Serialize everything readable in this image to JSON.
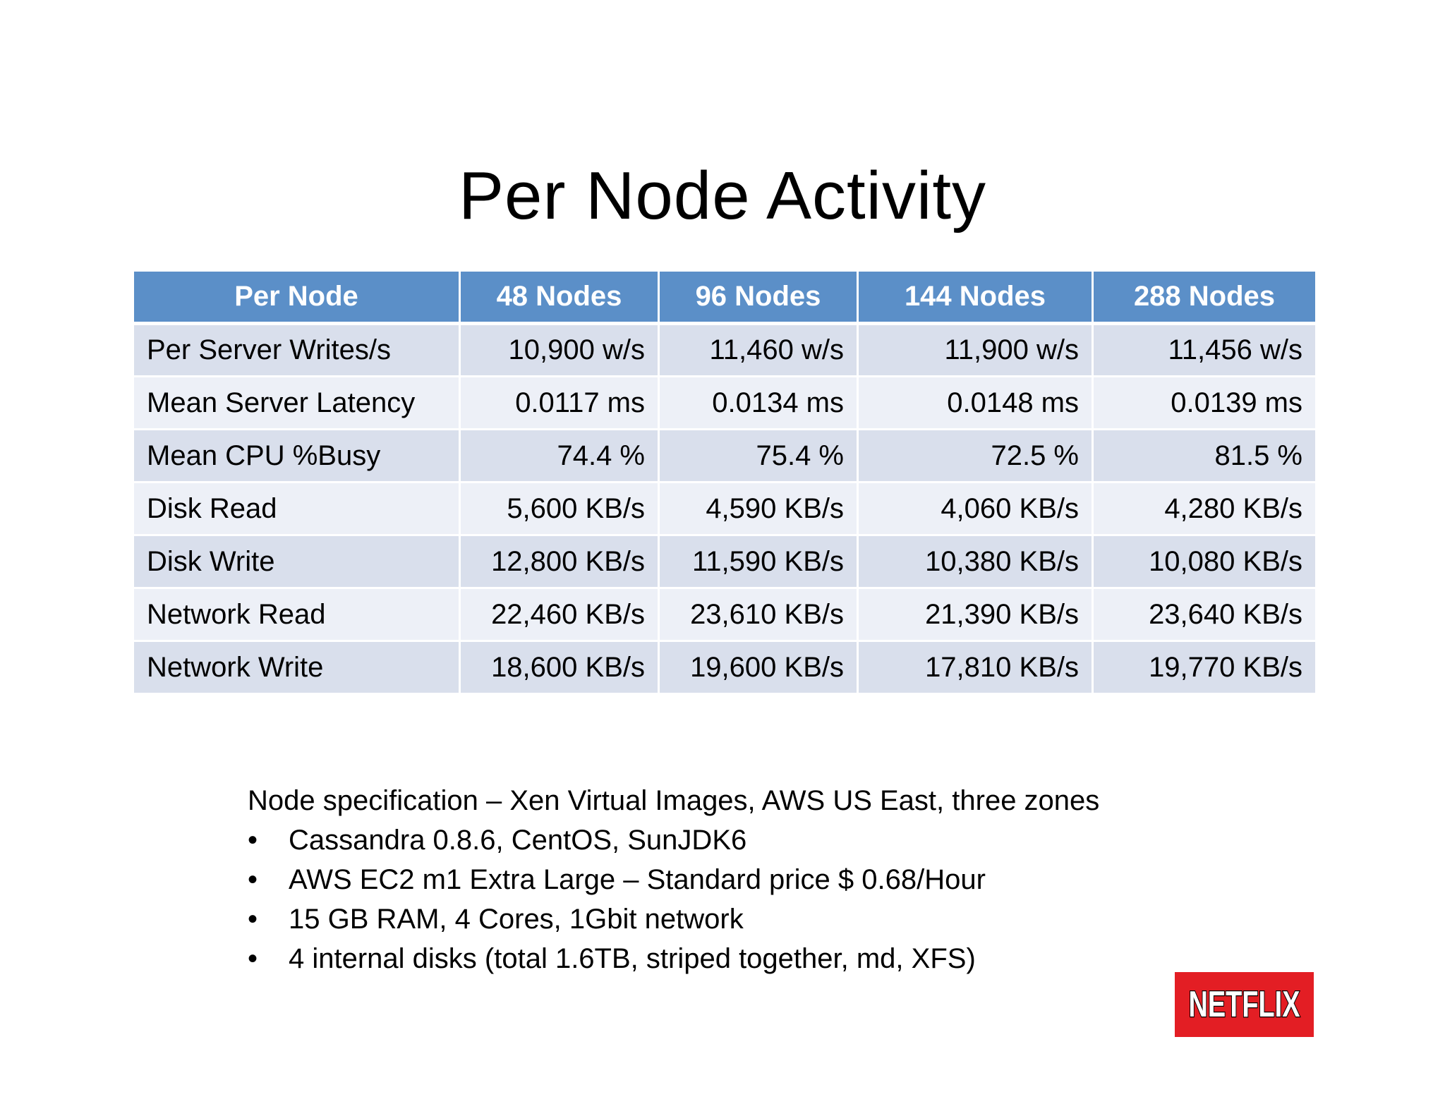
{
  "title": "Per Node Activity",
  "table": {
    "headers": [
      "Per Node",
      "48 Nodes",
      "96 Nodes",
      "144 Nodes",
      "288 Nodes"
    ],
    "rows": [
      {
        "label": "Per Server Writes/s",
        "values": [
          "10,900 w/s",
          "11,460 w/s",
          "11,900 w/s",
          "11,456 w/s"
        ]
      },
      {
        "label": "Mean Server Latency",
        "values": [
          "0.0117 ms",
          "0.0134 ms",
          "0.0148 ms",
          "0.0139 ms"
        ]
      },
      {
        "label": "Mean CPU %Busy",
        "values": [
          "74.4 %",
          "75.4 %",
          "72.5 %",
          "81.5 %"
        ]
      },
      {
        "label": "Disk Read",
        "values": [
          "5,600 KB/s",
          "4,590 KB/s",
          "4,060 KB/s",
          "4,280 KB/s"
        ]
      },
      {
        "label": "Disk Write",
        "values": [
          "12,800 KB/s",
          "11,590 KB/s",
          "10,380 KB/s",
          "10,080 KB/s"
        ]
      },
      {
        "label": "Network Read",
        "values": [
          "22,460 KB/s",
          "23,610 KB/s",
          "21,390 KB/s",
          "23,640 KB/s"
        ]
      },
      {
        "label": "Network Write",
        "values": [
          "18,600 KB/s",
          "19,600 KB/s",
          "17,810 KB/s",
          "19,770 KB/s"
        ]
      }
    ]
  },
  "spec": {
    "heading": "Node specification – Xen Virtual Images, AWS US East, three zones",
    "bullet_glyph": "•",
    "items": [
      "Cassandra 0.8.6, CentOS, SunJDK6",
      "AWS EC2 m1 Extra Large – Standard price $ 0.68/Hour",
      "15 GB RAM, 4 Cores, 1Gbit network",
      "4 internal disks (total 1.6TB, striped together, md, XFS)"
    ]
  },
  "logo": {
    "text": "NETFLIX",
    "background": "#e31e24",
    "text_color": "#ffffff"
  },
  "colors": {
    "header_bg": "#5b8fc8",
    "row_odd_bg": "#d9dfec",
    "row_even_bg": "#edf0f7"
  }
}
